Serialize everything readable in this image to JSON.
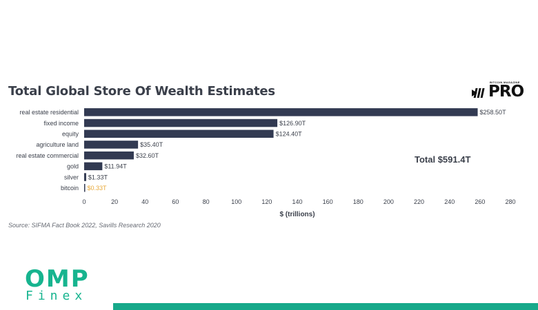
{
  "chart_data": {
    "type": "bar",
    "orientation": "horizontal",
    "title": "Total Global Store Of Wealth Estimates",
    "categories": [
      "real estate residential",
      "fixed income",
      "equity",
      "agriculture land",
      "real estate commercial",
      "gold",
      "silver",
      "bitcoin"
    ],
    "values": [
      258.5,
      126.9,
      124.4,
      35.4,
      32.6,
      11.94,
      1.33,
      0.33
    ],
    "data_labels": [
      "$258.50T",
      "$126.90T",
      "$124.40T",
      "$35.40T",
      "$32.60T",
      "$11.94T",
      "$1.33T",
      "$0.33T"
    ],
    "xlabel": "$ (trillions)",
    "ylabel": "",
    "xlim": [
      0,
      280
    ],
    "xticks": [
      0,
      20,
      40,
      60,
      80,
      100,
      120,
      140,
      160,
      180,
      200,
      220,
      240,
      260,
      280
    ],
    "grid": false,
    "legend": "none",
    "colors": {
      "bar": "#323a52",
      "highlight_label": "#e8a93a",
      "label": "#3a3f4a"
    },
    "highlight_category": "bitcoin",
    "annotation": "Total $591.4T",
    "source": "Source: SIFMA Fact Book 2022, Savills Research 2020"
  },
  "branding": {
    "publisher_tagline": "BITCOIN MAGAZINE",
    "publisher_name": "PRO",
    "watermark_primary": "OMP",
    "watermark_secondary": "Finex",
    "accent_color": "#17b48f"
  }
}
